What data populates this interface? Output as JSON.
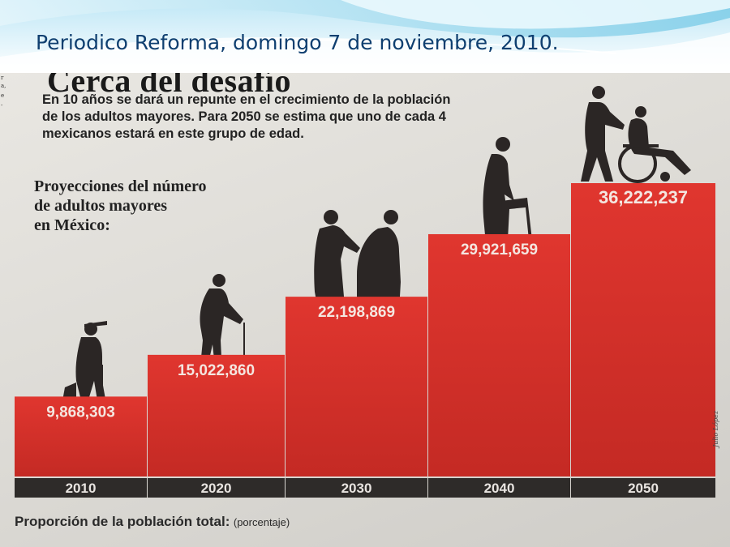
{
  "slide": {
    "title": "Periodico Reforma, domingo 7 de noviembre, 2010."
  },
  "article": {
    "headline": "Cerca del desafío",
    "deck_lines": [
      "En 10 años se dará un repunte en el crecimiento de la población",
      "de los adultos mayores. Para 2050 se estima que uno de cada 4",
      "mexicanos estará en este grupo de edad."
    ],
    "chart_heading_lines": [
      "Proyecciones del número",
      "de adultos mayores",
      "en México:"
    ],
    "footer_label": "Proporción de la población total:",
    "footer_unit": "(porcentaje)",
    "credit": "Julio López"
  },
  "colors": {
    "bar_red": "#e0362f",
    "bar_red_dark": "#c42a24",
    "year_band": "#2e2b29",
    "label_text": "#f4e6e0",
    "silhouette": "#2b2625"
  },
  "icons": [
    "elderly-man-cane-icon",
    "elderly-man-cane-icon",
    "elderly-couple-icon",
    "elderly-woman-walker-icon",
    "caregiver-wheelchair-icon"
  ],
  "chart_data": {
    "type": "bar",
    "title": "Proyecciones del número de adultos mayores en México:",
    "categories": [
      "2010",
      "2020",
      "2030",
      "2040",
      "2050"
    ],
    "values": [
      9868303,
      15022860,
      22198869,
      29921659,
      36222237
    ],
    "value_labels": [
      "9,868,303",
      "15,022,860",
      "22,198,869",
      "29,921,659",
      "36,222,237"
    ],
    "ylim": [
      0,
      36222237
    ],
    "grid": false,
    "legend": "none"
  }
}
